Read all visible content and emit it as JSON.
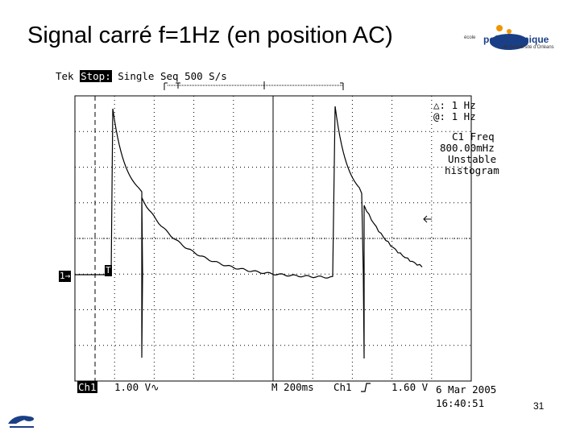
{
  "slide": {
    "title": "Signal carré f=1Hz (en position AC)",
    "page_number": "31"
  },
  "logo": {
    "small": "école",
    "main": "polytechnique",
    "sub": "de l'université d'Orléans"
  },
  "scope": {
    "brand": "Tek",
    "state": "Stop:",
    "mode": "Single Seq",
    "rate": "500 S/s",
    "delta_freq": "△: 1 Hz",
    "at_freq": "@: 1 Hz",
    "measure_title": "C1 Freq",
    "measure_value": "800.00mHz",
    "measure_status1": "Unstable",
    "measure_status2": "histogram",
    "ch_marker": "1→",
    "trig_marker": "T",
    "ch_label": "Ch1",
    "ch_scale": "1.00 V∿",
    "timebase": "M 200ms",
    "trig_src": "Ch1",
    "trig_level": "1.60 V",
    "date": "6 Mar 2005",
    "time": "16:40:51"
  },
  "colors": {
    "trace": "#000000",
    "grid": "#000000",
    "logo_blue": "#1a3f86",
    "logo_orange": "#f29400"
  }
}
